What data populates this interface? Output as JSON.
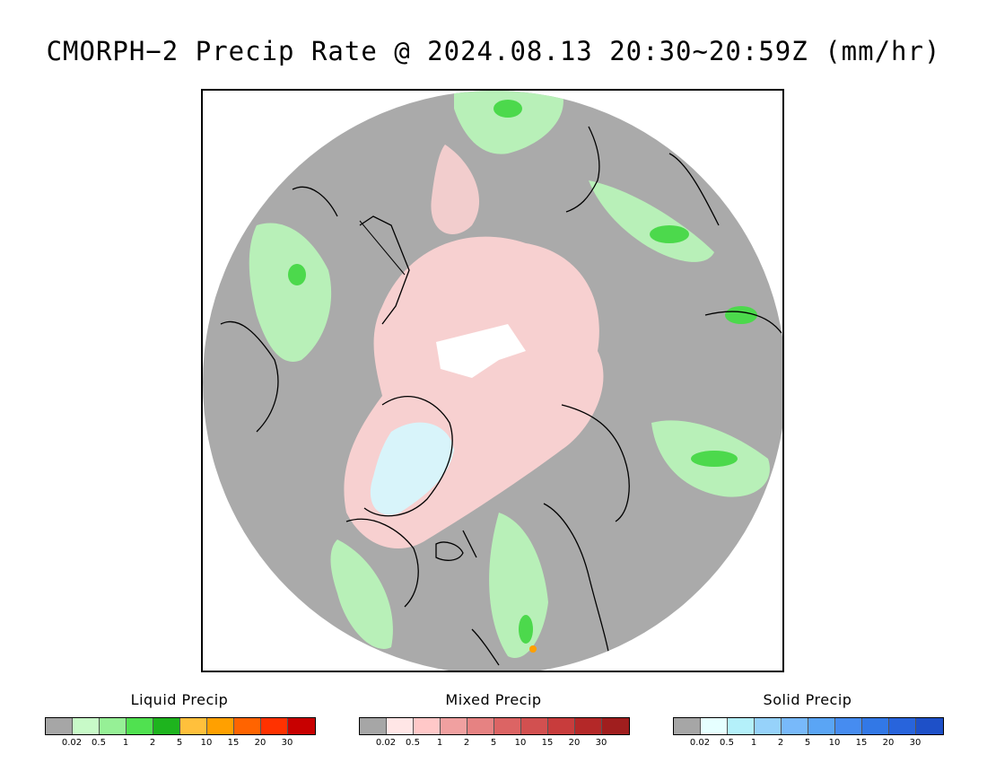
{
  "title": "CMORPH−2 Precip Rate @ 2024.08.13 20:30~20:59Z (mm/hr)",
  "map": {
    "background_color": "#aaaaaa",
    "coastline_color": "#000000"
  },
  "legends": [
    {
      "title": "Liquid Precip",
      "colors": [
        "#a6a6a6",
        "#c8fac8",
        "#96f096",
        "#50e150",
        "#1eb41e",
        "#ffc03c",
        "#ffa000",
        "#ff6400",
        "#ff3200",
        "#c80000"
      ],
      "ticks": [
        "0.02",
        "0.5",
        "1",
        "2",
        "5",
        "10",
        "15",
        "20",
        "30"
      ]
    },
    {
      "title": "Mixed Precip",
      "colors": [
        "#a6a6a6",
        "#ffe6e6",
        "#ffc8c8",
        "#f0a0a0",
        "#e68282",
        "#dc6464",
        "#d25050",
        "#c83c3c",
        "#b42828",
        "#a01e1e"
      ],
      "ticks": [
        "0.02",
        "0.5",
        "1",
        "2",
        "5",
        "10",
        "15",
        "20",
        "30"
      ]
    },
    {
      "title": "Solid Precip",
      "colors": [
        "#a6a6a6",
        "#e6ffff",
        "#b4f0fa",
        "#96d2fa",
        "#78b9fa",
        "#5aa5f5",
        "#468cf0",
        "#3278e6",
        "#2864dc",
        "#1e50c8"
      ],
      "ticks": [
        "0.02",
        "0.5",
        "1",
        "2",
        "5",
        "10",
        "15",
        "20",
        "30"
      ]
    }
  ]
}
